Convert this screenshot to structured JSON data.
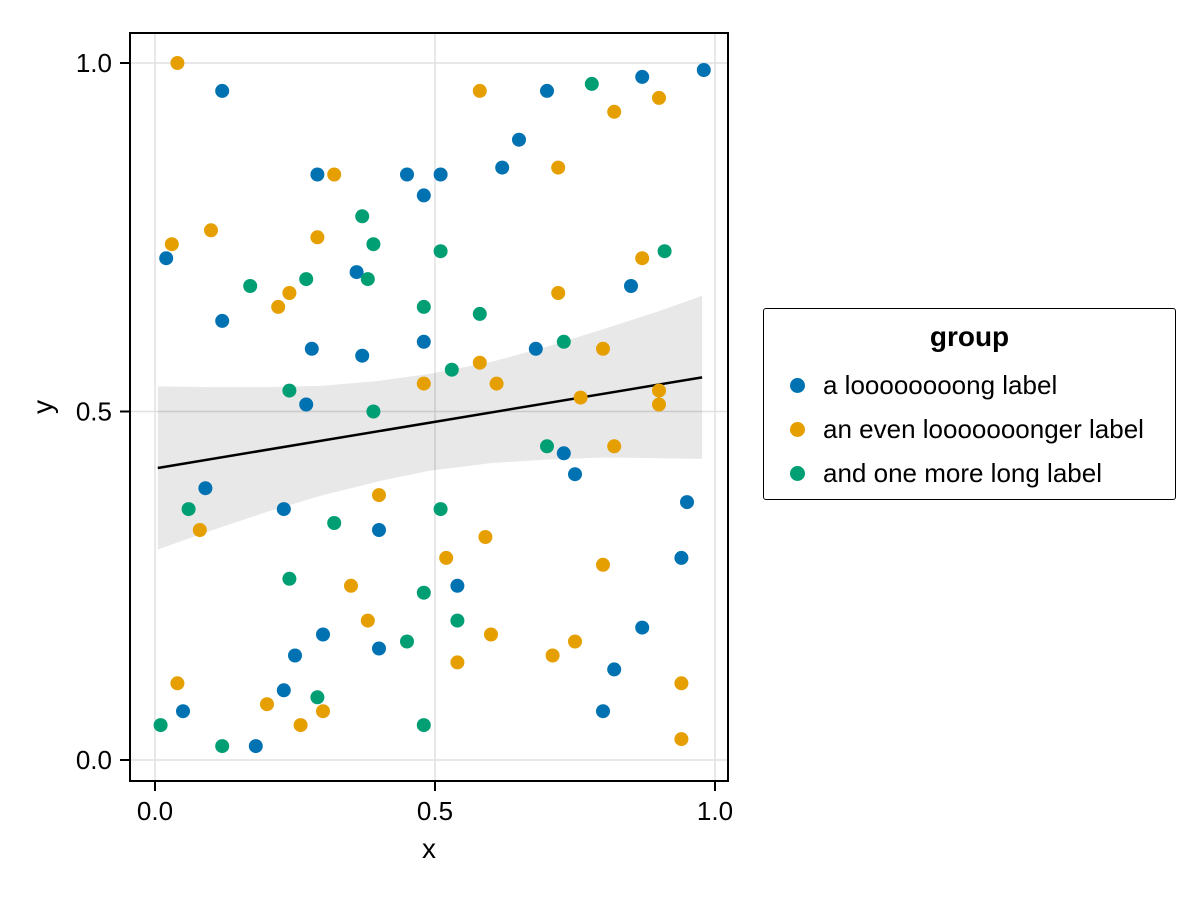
{
  "chart_data": {
    "type": "scatter",
    "title": "",
    "xlabel": "x",
    "ylabel": "y",
    "xlim": [
      -0.045,
      1.023
    ],
    "ylim": [
      -0.03,
      1.043
    ],
    "grid": true,
    "grid_color": "#e0e0e0",
    "spine_color": "#000000",
    "xticks": {
      "values": [
        0.0,
        0.5,
        1.0
      ],
      "labels": [
        "0.0",
        "0.5",
        "1.0"
      ]
    },
    "yticks": {
      "values": [
        0.0,
        0.5,
        1.0
      ],
      "labels": [
        "0.0",
        "0.5",
        "1.0"
      ]
    },
    "legend": {
      "title": "group",
      "position": "right-outside"
    },
    "series": [
      {
        "name": "a loooooooong label",
        "color": "#0072B2",
        "points": [
          [
            0.12,
            0.96
          ],
          [
            0.29,
            0.84
          ],
          [
            0.45,
            0.84
          ],
          [
            0.48,
            0.81
          ],
          [
            0.51,
            0.84
          ],
          [
            0.02,
            0.72
          ],
          [
            0.36,
            0.7
          ],
          [
            0.12,
            0.63
          ],
          [
            0.28,
            0.59
          ],
          [
            0.37,
            0.58
          ],
          [
            0.48,
            0.6
          ],
          [
            0.27,
            0.51
          ],
          [
            0.09,
            0.39
          ],
          [
            0.23,
            0.36
          ],
          [
            0.4,
            0.33
          ],
          [
            0.3,
            0.18
          ],
          [
            0.25,
            0.15
          ],
          [
            0.4,
            0.16
          ],
          [
            0.05,
            0.07
          ],
          [
            0.23,
            0.1
          ],
          [
            0.18,
            0.02
          ],
          [
            0.98,
            0.99
          ],
          [
            0.87,
            0.98
          ],
          [
            0.7,
            0.96
          ],
          [
            0.65,
            0.89
          ],
          [
            0.62,
            0.85
          ],
          [
            0.85,
            0.68
          ],
          [
            0.68,
            0.59
          ],
          [
            0.73,
            0.44
          ],
          [
            0.75,
            0.41
          ],
          [
            0.95,
            0.37
          ],
          [
            0.94,
            0.29
          ],
          [
            0.54,
            0.25
          ],
          [
            0.87,
            0.19
          ],
          [
            0.82,
            0.13
          ],
          [
            0.8,
            0.07
          ]
        ]
      },
      {
        "name": "an even looooooonger label",
        "color": "#E69F00",
        "points": [
          [
            0.04,
            1.0
          ],
          [
            0.32,
            0.84
          ],
          [
            0.1,
            0.76
          ],
          [
            0.03,
            0.74
          ],
          [
            0.29,
            0.75
          ],
          [
            0.24,
            0.67
          ],
          [
            0.22,
            0.65
          ],
          [
            0.48,
            0.54
          ],
          [
            0.58,
            0.96
          ],
          [
            0.9,
            0.95
          ],
          [
            0.82,
            0.93
          ],
          [
            0.72,
            0.85
          ],
          [
            0.87,
            0.72
          ],
          [
            0.72,
            0.67
          ],
          [
            0.8,
            0.59
          ],
          [
            0.58,
            0.57
          ],
          [
            0.61,
            0.54
          ],
          [
            0.9,
            0.53
          ],
          [
            0.76,
            0.52
          ],
          [
            0.9,
            0.51
          ],
          [
            0.08,
            0.33
          ],
          [
            0.4,
            0.38
          ],
          [
            0.35,
            0.25
          ],
          [
            0.38,
            0.2
          ],
          [
            0.04,
            0.11
          ],
          [
            0.2,
            0.08
          ],
          [
            0.3,
            0.07
          ],
          [
            0.26,
            0.05
          ],
          [
            0.82,
            0.45
          ],
          [
            0.59,
            0.32
          ],
          [
            0.52,
            0.29
          ],
          [
            0.8,
            0.28
          ],
          [
            0.6,
            0.18
          ],
          [
            0.75,
            0.17
          ],
          [
            0.71,
            0.15
          ],
          [
            0.54,
            0.14
          ],
          [
            0.94,
            0.11
          ],
          [
            0.94,
            0.03
          ]
        ]
      },
      {
        "name": "and one more long label",
        "color": "#009E73",
        "points": [
          [
            0.37,
            0.78
          ],
          [
            0.39,
            0.74
          ],
          [
            0.27,
            0.69
          ],
          [
            0.38,
            0.69
          ],
          [
            0.17,
            0.68
          ],
          [
            0.48,
            0.65
          ],
          [
            0.24,
            0.53
          ],
          [
            0.39,
            0.5
          ],
          [
            0.78,
            0.97
          ],
          [
            0.51,
            0.73
          ],
          [
            0.91,
            0.73
          ],
          [
            0.58,
            0.64
          ],
          [
            0.73,
            0.6
          ],
          [
            0.53,
            0.56
          ],
          [
            0.06,
            0.36
          ],
          [
            0.32,
            0.34
          ],
          [
            0.24,
            0.26
          ],
          [
            0.48,
            0.24
          ],
          [
            0.45,
            0.17
          ],
          [
            0.29,
            0.09
          ],
          [
            0.01,
            0.05
          ],
          [
            0.48,
            0.05
          ],
          [
            0.12,
            0.02
          ],
          [
            0.7,
            0.45
          ],
          [
            0.51,
            0.36
          ],
          [
            0.54,
            0.2
          ]
        ]
      }
    ],
    "fit_line": {
      "color": "#000000",
      "x": [
        0.005,
        0.977
      ],
      "y": [
        0.419,
        0.549
      ]
    },
    "confidence_band": {
      "color": "#000000",
      "opacity": 0.09,
      "x": [
        0.005,
        0.1,
        0.2,
        0.3,
        0.4,
        0.49,
        0.6,
        0.7,
        0.8,
        0.9,
        0.977
      ],
      "lower": [
        0.302,
        0.329,
        0.356,
        0.38,
        0.4,
        0.415,
        0.426,
        0.431,
        0.434,
        0.433,
        0.432
      ],
      "upper": [
        0.536,
        0.535,
        0.535,
        0.537,
        0.544,
        0.554,
        0.571,
        0.593,
        0.618,
        0.644,
        0.666
      ]
    }
  }
}
